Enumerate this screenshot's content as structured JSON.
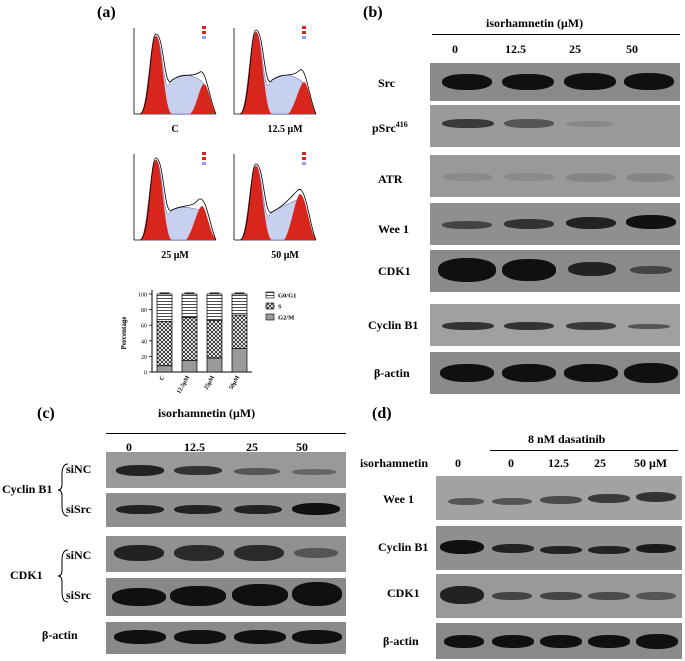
{
  "figure": {
    "panel_a": {
      "letter": "(a)",
      "histograms": [
        {
          "caption": "C"
        },
        {
          "caption": "12.5 μM"
        },
        {
          "caption": "25 μM"
        },
        {
          "caption": "50 μM"
        }
      ],
      "chart_data": {
        "type": "bar",
        "stacked": true,
        "categories": [
          "C",
          "12.5μM",
          "25μM",
          "50μM"
        ],
        "ylabel": "Percentage",
        "ylim": [
          0,
          100
        ],
        "yticks": [
          "0",
          "20",
          "40",
          "60",
          "80",
          "100"
        ],
        "series": [
          {
            "name": "G2/M",
            "values": [
              8,
              15,
              18,
              30
            ],
            "pattern": "gray"
          },
          {
            "name": "S",
            "values": [
              57,
              55,
              48,
              43
            ],
            "pattern": "checker"
          },
          {
            "name": "G0/G1",
            "values": [
              35,
              30,
              34,
              27
            ],
            "pattern": "stripe"
          }
        ],
        "legend_position": "top-right"
      }
    },
    "panel_b": {
      "letter": "(b)",
      "header": "isorhamnetin (μM)",
      "doses": [
        "0",
        "12.5",
        "25",
        "50"
      ],
      "rows": [
        {
          "label": "Src"
        },
        {
          "label": "pSrc",
          "superscript": "416"
        },
        {
          "label": "ATR"
        },
        {
          "label": "Wee 1"
        },
        {
          "label": "CDK1"
        },
        {
          "label": "Cyclin B1"
        },
        {
          "label": "β-actin"
        }
      ]
    },
    "panel_c": {
      "letter": "(c)",
      "header": "isorhamnetin (μM)",
      "doses": [
        "0",
        "12.5",
        "25",
        "50"
      ],
      "groups": [
        {
          "label": "Cyclin B1",
          "sub": [
            "siNC",
            "siSrc"
          ]
        },
        {
          "label": "CDK1",
          "sub": [
            "siNC",
            "siSrc"
          ]
        }
      ],
      "loading": "β-actin"
    },
    "panel_d": {
      "letter": "(d)",
      "treatment": "8  nM  dasatinib",
      "row_header": "isorhamnetin",
      "doses": [
        "0",
        "0",
        "12.5",
        "25",
        "50 μM"
      ],
      "rows": [
        {
          "label": "Wee 1"
        },
        {
          "label": "Cyclin B1"
        },
        {
          "label": "CDK1"
        },
        {
          "label": "β-actin"
        }
      ]
    }
  }
}
